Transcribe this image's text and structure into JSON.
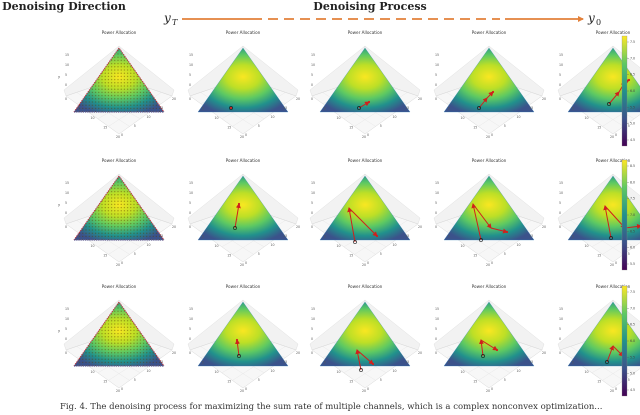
{
  "headers": {
    "left": "Denoising Direction",
    "center": "Denoising Process",
    "y_start_base": "y",
    "y_start_sub": "T",
    "y_end_base": "y",
    "y_end_sub": "0"
  },
  "panel_title": "Power Allocation",
  "axis_tick_labels": [
    "0",
    "5",
    "10",
    "15",
    "20"
  ],
  "z_axis_label": "y",
  "colorbars": [
    {
      "ticks": [
        "7.5",
        "7.0",
        "6.5",
        "6.0",
        "5.5",
        "5.0",
        "4.5"
      ]
    },
    {
      "ticks": [
        "8.5",
        "8.0",
        "7.5",
        "7.0",
        "6.5",
        "6.0",
        "5.5"
      ]
    },
    {
      "ticks": [
        "7.5",
        "7.0",
        "6.5",
        "6.0",
        "5.5",
        "5.0",
        "4.5"
      ]
    }
  ],
  "caption": "Fig. 4. The denoising process for maximizing the sum rate of multiple channels, which is a complex nonconvex optimization...",
  "colors": {
    "arrow": "#e3813a",
    "trajectory": "#d0201c",
    "surface_high": "#f9e721",
    "surface_mid": "#35b779",
    "surface_low": "#31688e",
    "surface_min": "#440154"
  }
}
